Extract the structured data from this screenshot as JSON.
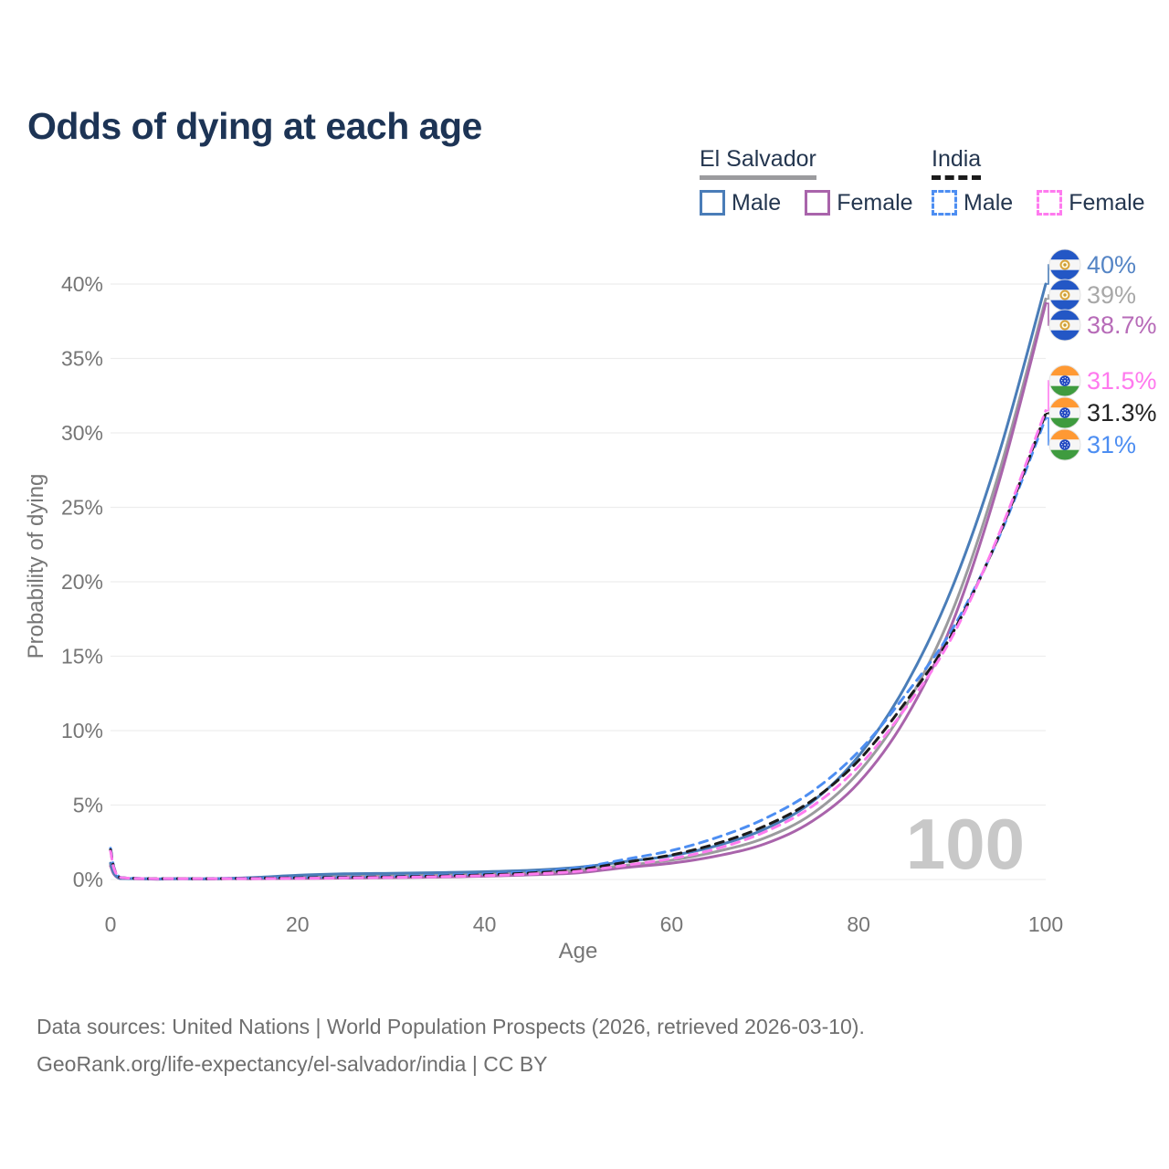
{
  "header": {
    "title": "Odds of dying at each age"
  },
  "legend": {
    "groups": [
      {
        "id": "el-salvador",
        "label": "El Salvador",
        "series_ref": "el-salvador-both",
        "items": [
          {
            "label": "Male",
            "series_ref": "el-salvador-male"
          },
          {
            "label": "Female",
            "series_ref": "el-salvador-female"
          }
        ]
      },
      {
        "id": "india",
        "label": "India",
        "series_ref": "india-both",
        "items": [
          {
            "label": "Male",
            "series_ref": "india-male"
          },
          {
            "label": "Female",
            "series_ref": "india-female"
          }
        ]
      }
    ]
  },
  "chart_data": {
    "type": "line",
    "title": "Odds of dying at each age",
    "xlabel": "Age",
    "ylabel": "Probability of dying",
    "xlim": [
      0,
      100
    ],
    "ylim": [
      0,
      40
    ],
    "x_ticks": [
      0,
      20,
      40,
      60,
      80,
      100
    ],
    "y_ticks": [
      0,
      5,
      10,
      15,
      20,
      25,
      30,
      35,
      40
    ],
    "y_tick_suffix": "%",
    "grid": true,
    "legend_position": "top-right",
    "watermark": "100",
    "ages": [
      0,
      1,
      5,
      10,
      15,
      20,
      25,
      30,
      35,
      40,
      45,
      50,
      55,
      60,
      65,
      70,
      75,
      80,
      85,
      90,
      95,
      100
    ],
    "series": [
      {
        "id": "el-salvador-both",
        "name": "El Salvador — Both sexes",
        "country": "El Salvador",
        "sex": "Both",
        "color": "#9b9b9e",
        "dash": "solid",
        "flag_icon": "el-salvador-flag-icon",
        "end_label": "39%",
        "end_label_color": "#a8a8a8",
        "values": [
          1.0,
          0.07,
          0.03,
          0.03,
          0.08,
          0.17,
          0.24,
          0.27,
          0.31,
          0.37,
          0.46,
          0.62,
          0.95,
          1.3,
          1.9,
          2.8,
          4.4,
          7.2,
          11.6,
          18.0,
          27.3,
          39.0
        ]
      },
      {
        "id": "el-salvador-female",
        "name": "El Salvador — Female",
        "country": "El Salvador",
        "sex": "Female",
        "color": "#a964ab",
        "dash": "solid",
        "flag_icon": "el-salvador-flag-icon",
        "end_label": "38.7%",
        "end_label_color": "#b76bb8",
        "values": [
          0.9,
          0.07,
          0.02,
          0.03,
          0.05,
          0.07,
          0.09,
          0.12,
          0.16,
          0.22,
          0.31,
          0.45,
          0.8,
          1.1,
          1.6,
          2.4,
          3.9,
          6.5,
          10.8,
          17.2,
          26.7,
          38.7
        ]
      },
      {
        "id": "el-salvador-male",
        "name": "El Salvador — Male",
        "country": "El Salvador",
        "sex": "Male",
        "color": "#4a7db8",
        "dash": "solid",
        "flag_icon": "el-salvador-flag-icon",
        "end_label": "40%",
        "end_label_color": "#5585c5",
        "values": [
          1.1,
          0.08,
          0.03,
          0.04,
          0.12,
          0.28,
          0.38,
          0.42,
          0.46,
          0.52,
          0.62,
          0.82,
          1.2,
          1.6,
          2.3,
          3.4,
          5.2,
          8.3,
          13.0,
          19.6,
          28.6,
          40.0
        ]
      },
      {
        "id": "india-male",
        "name": "India — Male",
        "country": "India",
        "sex": "Male",
        "color": "#4d8ef2",
        "dash": "dashed",
        "flag_icon": "india-flag-icon",
        "end_label": "31%",
        "end_label_color": "#4d8ef2",
        "values": [
          2.1,
          0.15,
          0.05,
          0.06,
          0.09,
          0.13,
          0.17,
          0.22,
          0.28,
          0.37,
          0.52,
          0.78,
          1.35,
          1.95,
          2.85,
          4.1,
          5.9,
          8.6,
          12.4,
          16.8,
          23.0,
          31.0
        ]
      },
      {
        "id": "india-both",
        "name": "India — Both sexes",
        "country": "India",
        "sex": "Both",
        "color": "#1b1b1b",
        "dash": "dashed",
        "flag_icon": "india-flag-icon",
        "end_label": "31.3%",
        "end_label_color": "#242424",
        "values": [
          2.0,
          0.14,
          0.05,
          0.05,
          0.08,
          0.11,
          0.14,
          0.18,
          0.23,
          0.31,
          0.44,
          0.66,
          1.15,
          1.65,
          2.45,
          3.6,
          5.3,
          8.0,
          11.9,
          16.5,
          23.1,
          31.3
        ]
      },
      {
        "id": "india-female",
        "name": "India — Female",
        "country": "India",
        "sex": "Female",
        "color": "#ff7bef",
        "dash": "dashed",
        "flag_icon": "india-flag-icon",
        "end_label": "31.5%",
        "end_label_color": "#ff79ee",
        "values": [
          1.9,
          0.14,
          0.04,
          0.05,
          0.06,
          0.08,
          0.11,
          0.14,
          0.19,
          0.26,
          0.37,
          0.55,
          0.95,
          1.4,
          2.1,
          3.2,
          4.9,
          7.6,
          11.5,
          16.3,
          23.2,
          31.5
        ]
      }
    ]
  },
  "footer": {
    "line1": "Data sources: United Nations | World Population Prospects (2026, retrieved 2026-03-10).",
    "line2": "GeoRank.org/life-expectancy/el-salvador/india | CC BY"
  },
  "colors": {
    "title_text": "#1d3455",
    "axis_text": "#767676",
    "gridline": "#ededed",
    "watermark": "#c8c8c8",
    "footer_text": "#6e6e6e"
  }
}
